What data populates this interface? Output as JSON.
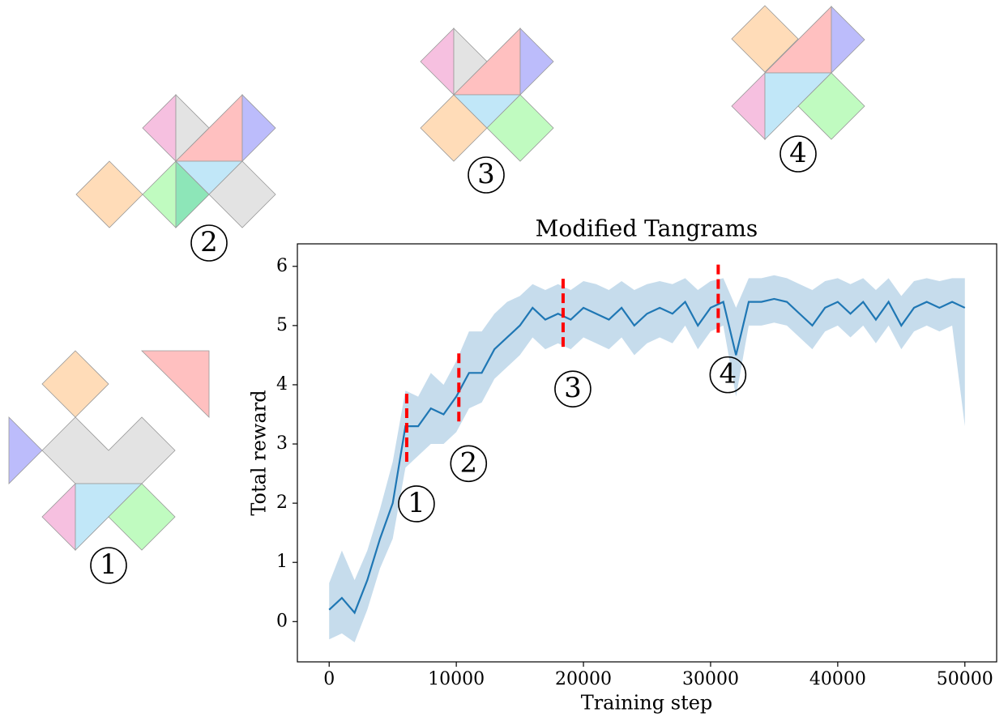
{
  "chart_data": {
    "type": "line",
    "title": "Modified Tangrams",
    "xlabel": "Training step",
    "ylabel": "Total reward",
    "x": [
      0,
      1000,
      2000,
      3000,
      4000,
      5000,
      6000,
      7000,
      8000,
      9000,
      10000,
      11000,
      12000,
      13000,
      14000,
      15000,
      16000,
      17000,
      18000,
      19000,
      20000,
      21000,
      22000,
      23000,
      24000,
      25000,
      26000,
      27000,
      28000,
      29000,
      30000,
      31000,
      32000,
      33000,
      34000,
      35000,
      36000,
      37000,
      38000,
      39000,
      40000,
      41000,
      42000,
      43000,
      44000,
      45000,
      46000,
      47000,
      48000,
      49000,
      50000
    ],
    "series": [
      {
        "color": "#1f77b4",
        "band_color": "#c6dcec",
        "values": [
          0.2,
          0.4,
          0.15,
          0.7,
          1.4,
          2.0,
          3.3,
          3.3,
          3.6,
          3.5,
          3.8,
          4.2,
          4.2,
          4.6,
          4.8,
          5.0,
          5.3,
          5.1,
          5.2,
          5.1,
          5.3,
          5.2,
          5.1,
          5.3,
          5.0,
          5.2,
          5.3,
          5.2,
          5.4,
          5.0,
          5.3,
          5.4,
          4.5,
          5.4,
          5.4,
          5.45,
          5.4,
          5.2,
          5.0,
          5.3,
          5.4,
          5.2,
          5.4,
          5.1,
          5.4,
          5.0,
          5.3,
          5.4,
          5.3,
          5.4,
          5.3
        ],
        "lower": [
          -0.3,
          -0.2,
          -0.35,
          0.2,
          0.9,
          1.4,
          2.6,
          2.8,
          3.0,
          3.0,
          3.2,
          3.6,
          3.7,
          4.1,
          4.3,
          4.5,
          4.8,
          4.6,
          4.7,
          4.6,
          4.8,
          4.7,
          4.6,
          4.8,
          4.5,
          4.7,
          4.8,
          4.7,
          5.0,
          4.6,
          4.9,
          5.0,
          3.8,
          5.0,
          5.0,
          5.05,
          5.0,
          4.8,
          4.6,
          4.9,
          5.0,
          4.8,
          5.0,
          4.7,
          5.0,
          4.6,
          4.9,
          5.0,
          4.9,
          5.0,
          3.3
        ],
        "upper": [
          0.65,
          1.2,
          0.7,
          1.2,
          1.9,
          2.7,
          3.9,
          3.8,
          4.2,
          4.0,
          4.4,
          4.9,
          4.9,
          5.2,
          5.4,
          5.5,
          5.7,
          5.6,
          5.7,
          5.6,
          5.75,
          5.7,
          5.6,
          5.75,
          5.6,
          5.7,
          5.75,
          5.7,
          5.8,
          5.6,
          5.75,
          5.8,
          5.3,
          5.8,
          5.8,
          5.85,
          5.8,
          5.7,
          5.6,
          5.75,
          5.8,
          5.7,
          5.8,
          5.6,
          5.8,
          5.5,
          5.75,
          5.8,
          5.75,
          5.8,
          5.8
        ]
      }
    ],
    "xlim": [
      -2500,
      52500
    ],
    "ylim": [
      -0.68,
      6.38
    ],
    "xticks": [
      0,
      10000,
      20000,
      30000,
      40000,
      50000
    ],
    "yticks": [
      0,
      1,
      2,
      3,
      4,
      5,
      6
    ],
    "markers": [
      {
        "x": 6100,
        "y0": 2.7,
        "y1": 3.88,
        "label": "1",
        "color": "#ff0000"
      },
      {
        "x": 10200,
        "y0": 3.38,
        "y1": 4.55,
        "label": "2",
        "color": "#ff0000"
      },
      {
        "x": 18400,
        "y0": 4.64,
        "y1": 5.8,
        "label": "3",
        "color": "#ff0000"
      },
      {
        "x": 30600,
        "y0": 4.88,
        "y1": 6.05,
        "label": "4",
        "color": "#ff0000"
      }
    ]
  },
  "tangrams": [
    {
      "label": "1"
    },
    {
      "label": "2"
    },
    {
      "label": "3"
    },
    {
      "label": "4"
    }
  ]
}
